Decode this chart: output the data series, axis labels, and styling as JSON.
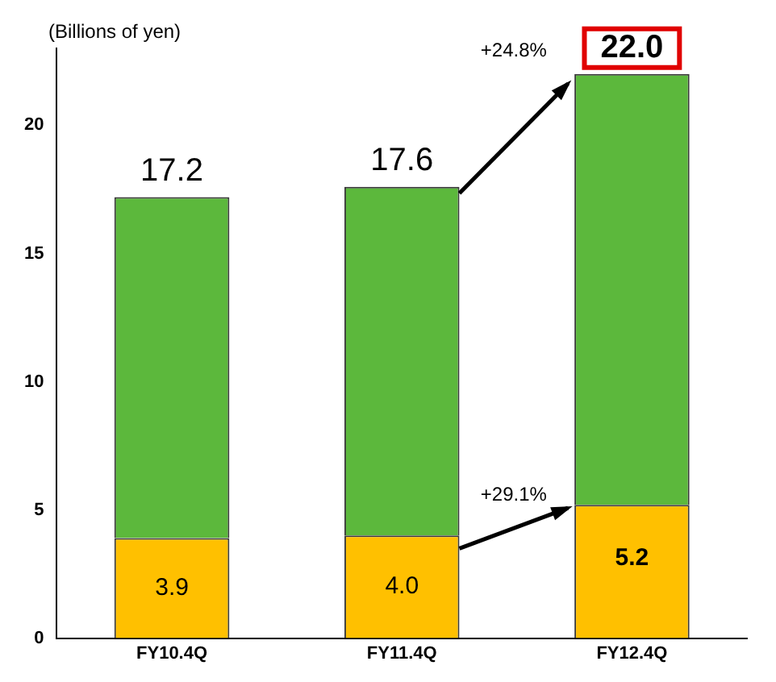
{
  "chart_data": {
    "type": "bar",
    "stacked": true,
    "ylabel": "(Billions of yen)",
    "categories": [
      "FY10.4Q",
      "FY11.4Q",
      "FY12.4Q"
    ],
    "series": [
      {
        "color": "#ffc000",
        "values": [
          3.9,
          4.0,
          5.2
        ],
        "value_labels": [
          "3.9",
          "4.0",
          "5.2"
        ]
      },
      {
        "color": "#5cb83c",
        "values": [
          13.3,
          13.6,
          16.8
        ]
      }
    ],
    "totals": [
      "17.2",
      "17.6",
      "22.0"
    ],
    "annotations": [
      "+24.8%",
      "+29.1%"
    ],
    "ylim": [
      0,
      23
    ],
    "yticks": [
      0,
      5,
      10,
      15,
      20
    ],
    "grid": false,
    "legend": false
  }
}
